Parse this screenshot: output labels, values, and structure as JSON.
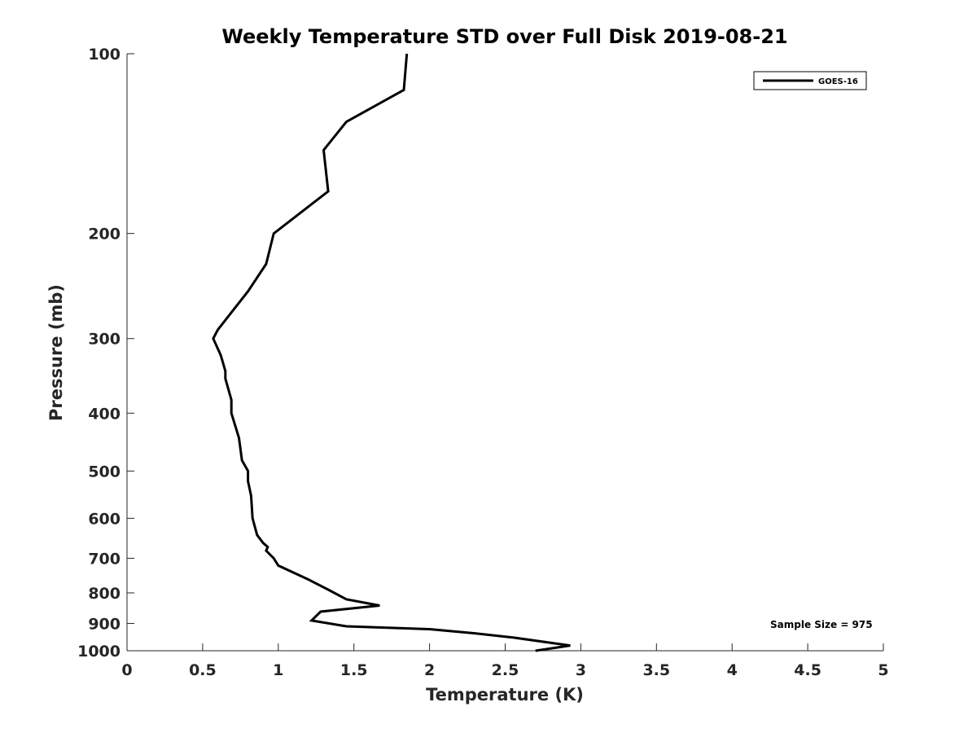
{
  "chart_data": {
    "type": "line",
    "title": "Weekly Temperature STD over Full Disk 2019-08-21",
    "xlabel": "Temperature (K)",
    "ylabel": "Pressure (mb)",
    "xlim": [
      0,
      5
    ],
    "ylim": [
      100,
      1000
    ],
    "y_scale": "log",
    "y_reversed": true,
    "grid": false,
    "legend_position": "top-right",
    "x_ticks": [
      "0",
      "0.5",
      "1",
      "1.5",
      "2",
      "2.5",
      "3",
      "3.5",
      "4",
      "4.5",
      "5"
    ],
    "y_ticks": [
      "100",
      "200",
      "300",
      "400",
      "500",
      "600",
      "700",
      "800",
      "900",
      "1000"
    ],
    "series": [
      {
        "name": "GOES-16",
        "color": "#000000",
        "x": [
          1.85,
          1.83,
          1.45,
          1.3,
          1.33,
          0.97,
          0.92,
          0.8,
          0.6,
          0.57,
          0.62,
          0.65,
          0.65,
          0.69,
          0.69,
          0.74,
          0.76,
          0.8,
          0.8,
          0.82,
          0.83,
          0.86,
          0.9,
          0.93,
          0.92,
          0.97,
          1.0,
          1.2,
          1.33,
          1.45,
          1.67,
          1.28,
          1.22,
          1.45,
          2.0,
          2.3,
          2.55,
          2.93,
          2.7
        ],
        "y": [
          100,
          115,
          130,
          145,
          170,
          200,
          225,
          250,
          290,
          300,
          320,
          340,
          350,
          380,
          400,
          440,
          480,
          500,
          520,
          550,
          600,
          640,
          660,
          670,
          680,
          700,
          720,
          760,
          790,
          820,
          840,
          860,
          890,
          910,
          920,
          935,
          950,
          980,
          1000
        ]
      }
    ],
    "annotations": [
      "Sample Size = 975"
    ]
  }
}
